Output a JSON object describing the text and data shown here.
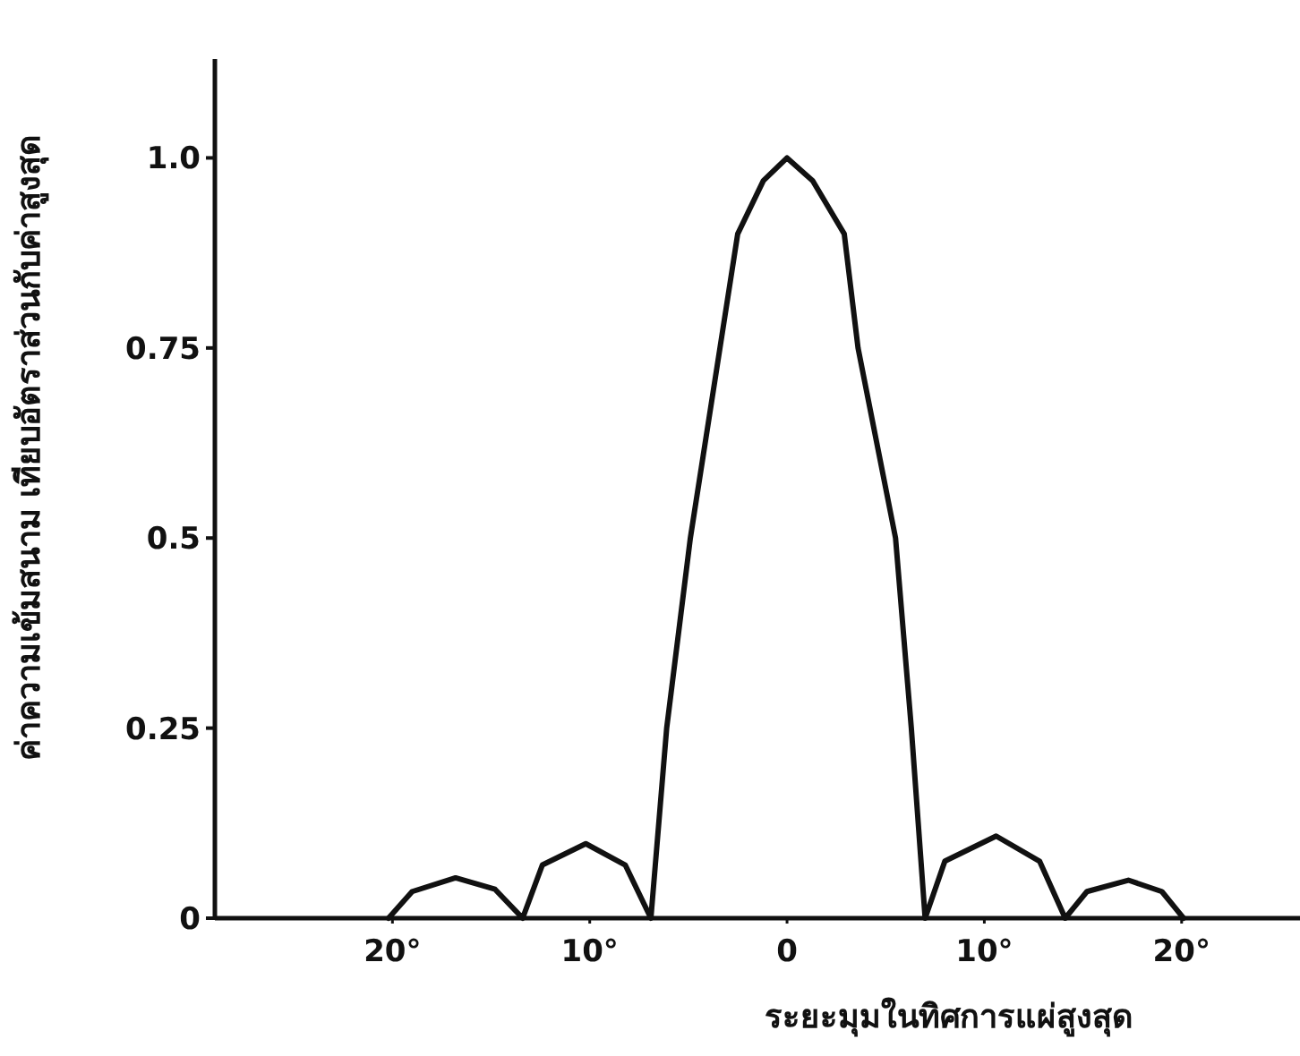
{
  "chart_data": {
    "type": "line",
    "xlabel": "ระยะมุมในทิศการแผ่สูงสุด",
    "ylabel": "ค่าความเข้มสนาม เทียบอัตราส่วนกับค่าสูงสุด",
    "x": [
      -20.2,
      -19,
      -16.8,
      -14.8,
      -13.4,
      -12.4,
      -10.2,
      -8.2,
      -6.9,
      -6.1,
      -4.9,
      -3.4,
      -2.5,
      -1.2,
      0,
      1.3,
      2.9,
      3.6,
      5.5,
      6.3,
      7.0,
      8.0,
      10.6,
      12.8,
      14.1,
      15.2,
      17.3,
      19.0,
      20.1
    ],
    "series": [
      {
        "color": "#111111",
        "values": [
          0,
          0.035,
          0.053,
          0.038,
          0,
          0.07,
          0.098,
          0.07,
          0,
          0.25,
          0.5,
          0.75,
          0.9,
          0.97,
          1.0,
          0.97,
          0.9,
          0.75,
          0.5,
          0.25,
          0,
          0.075,
          0.108,
          0.075,
          0,
          0.035,
          0.05,
          0.035,
          0
        ]
      }
    ],
    "xlim": [
      -29,
      26
    ],
    "ylim": [
      0,
      1.13
    ],
    "xticks": [
      {
        "value": -20,
        "label": "20°"
      },
      {
        "value": -10,
        "label": "10°"
      },
      0,
      {
        "value": 10,
        "label": "10°"
      },
      {
        "value": 20,
        "label": "20°"
      }
    ],
    "yticks": [
      0,
      0.25,
      0.5,
      0.75,
      {
        "value": 1,
        "label": "1.0"
      }
    ],
    "line_style": "solid",
    "marker": "none"
  }
}
